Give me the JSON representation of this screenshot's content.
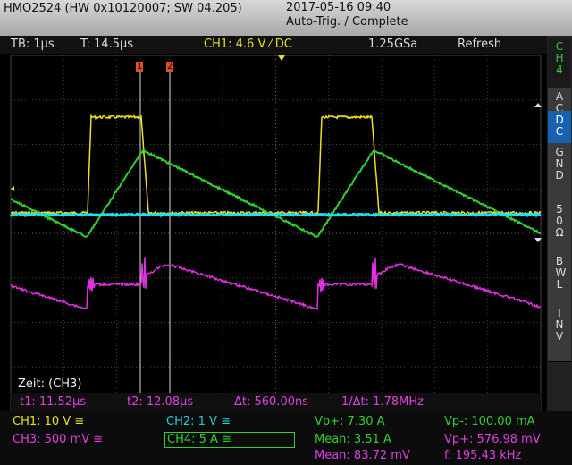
{
  "header": {
    "device": "HMO2524 (HW 0x10120007; SW 04.205)",
    "date": "2017-05-16 09:40",
    "status": "Auto-Trig. / Complete"
  },
  "settings_bar": {
    "timebase": "TB: 1µs",
    "trigger_time": "T: 14.5µs",
    "trigger": "CH1: 4.6 V ⁄ DC",
    "sample_rate": "1.25GSa",
    "mode": "Refresh"
  },
  "side_menu": [
    "CH4",
    "AC",
    "DC",
    "GND",
    "50 Ω",
    "BWL",
    "INV"
  ],
  "cursors": {
    "marker_1": "1",
    "marker_2": "2",
    "source": "Zeit: (CH3)",
    "t1": "t1: 11.52µs",
    "t2": "t2: 12.08µs",
    "delta_t": "Δt: 560.00ns",
    "inverse_delta_t": "1/Δt: 1.78MHz"
  },
  "channels": [
    "CH1: 10 V ≅",
    "CH2: 1 V ≅",
    "CH3: 500 mV ≅",
    "CH4: 5 A ≅"
  ],
  "measurements": [
    "Vp+: 7.30 A",
    "Mean: 3.51 A",
    "Mean: 83.72 mV",
    "Vp-: 100.00 mA",
    "Vp+: 576.98 mV",
    "f: 195.43 kHz"
  ]
}
